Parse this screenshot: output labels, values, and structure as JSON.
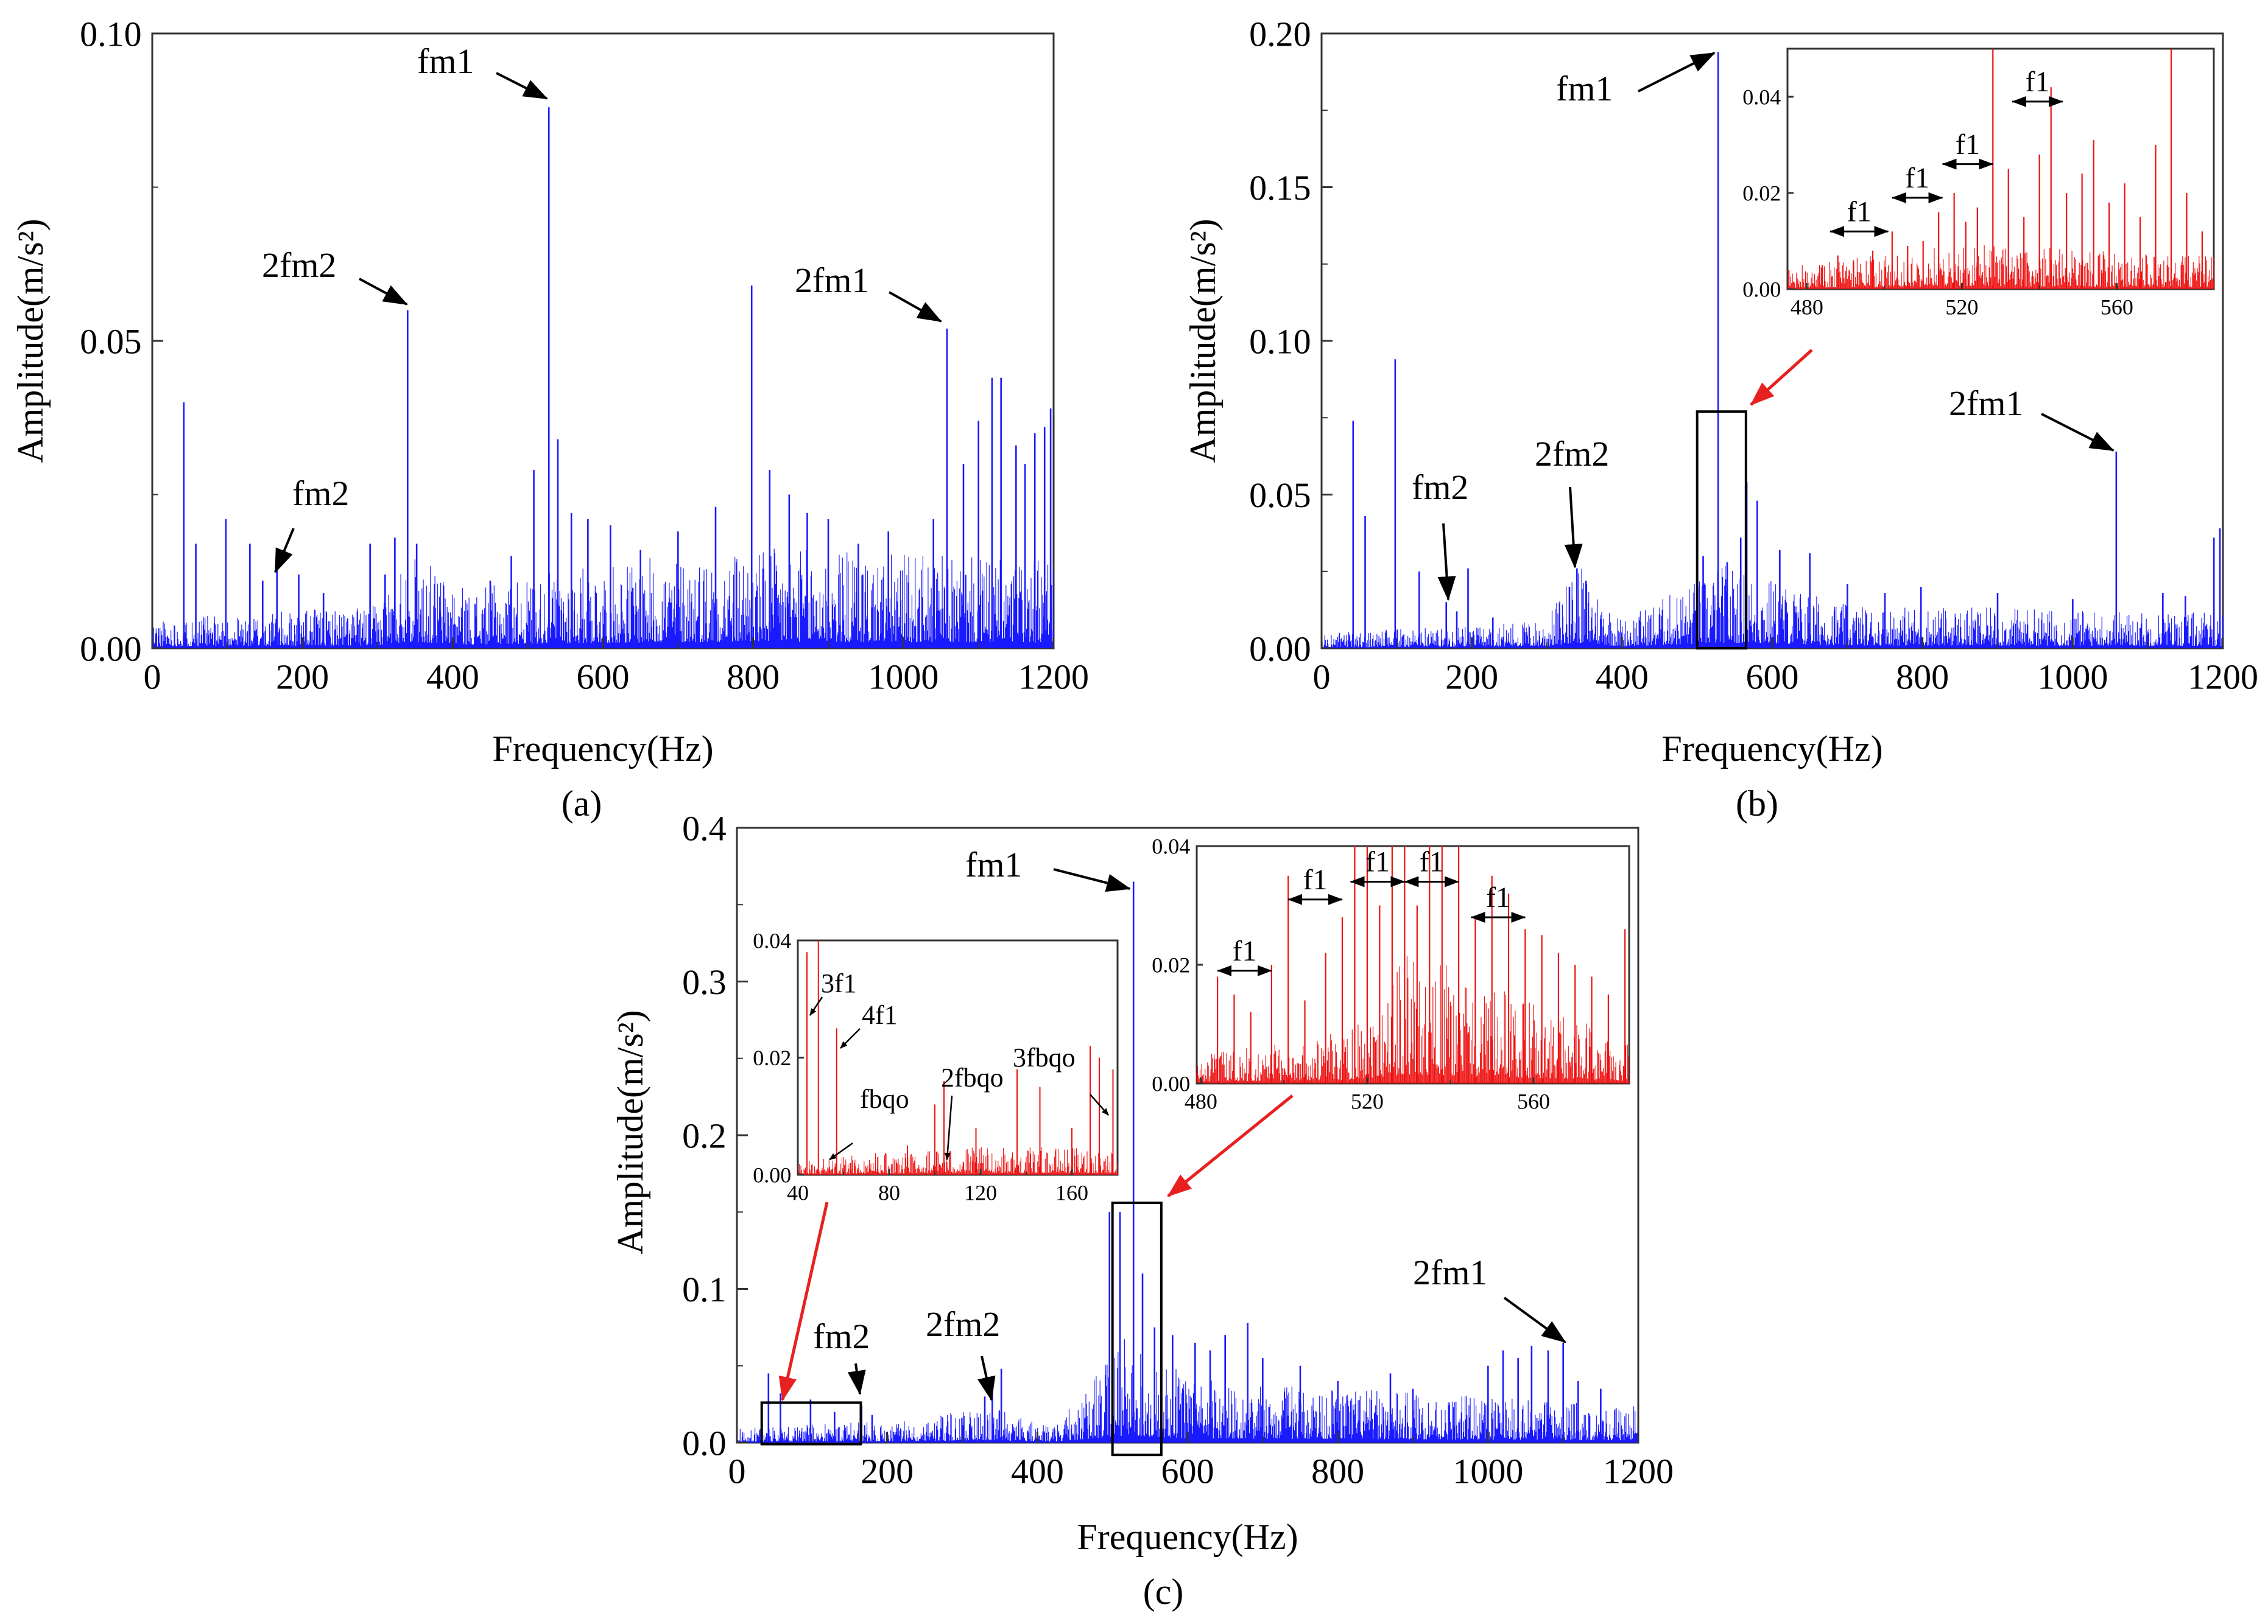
{
  "colors": {
    "main_series": "#1a1aff",
    "inset_series": "#ee1111",
    "arrow_red": "#e82020",
    "axis": "#000000"
  },
  "chart_data": [
    {
      "id": "a",
      "type": "line",
      "caption": "(a)",
      "xlabel": "Frequency(Hz)",
      "ylabel": "Amplitude(m/s²)",
      "xlim": [
        0,
        1200
      ],
      "ylim": [
        0,
        0.1
      ],
      "xticks": [
        0,
        200,
        400,
        600,
        800,
        1000,
        1200
      ],
      "yticks": [
        0.0,
        0.05,
        0.1
      ],
      "ytick_labels": [
        "0.00",
        "0.05",
        "0.10"
      ],
      "peaks": [
        [
          42,
          0.04
        ],
        [
          58,
          0.017
        ],
        [
          98,
          0.021
        ],
        [
          130,
          0.017
        ],
        [
          147,
          0.011
        ],
        [
          166,
          0.015
        ],
        [
          195,
          0.012
        ],
        [
          228,
          0.009
        ],
        [
          290,
          0.017
        ],
        [
          310,
          0.012
        ],
        [
          323,
          0.018
        ],
        [
          340,
          0.055
        ],
        [
          352,
          0.017
        ],
        [
          450,
          0.011
        ],
        [
          478,
          0.015
        ],
        [
          508,
          0.029
        ],
        [
          528,
          0.088
        ],
        [
          540,
          0.034
        ],
        [
          558,
          0.022
        ],
        [
          580,
          0.021
        ],
        [
          610,
          0.02
        ],
        [
          650,
          0.016
        ],
        [
          700,
          0.019
        ],
        [
          750,
          0.023
        ],
        [
          798,
          0.059
        ],
        [
          822,
          0.029
        ],
        [
          848,
          0.025
        ],
        [
          872,
          0.022
        ],
        [
          900,
          0.021
        ],
        [
          940,
          0.017
        ],
        [
          980,
          0.019
        ],
        [
          1040,
          0.021
        ],
        [
          1058,
          0.052
        ],
        [
          1080,
          0.03
        ],
        [
          1100,
          0.037
        ],
        [
          1118,
          0.044
        ],
        [
          1130,
          0.044
        ],
        [
          1150,
          0.033
        ],
        [
          1162,
          0.03
        ],
        [
          1175,
          0.035
        ],
        [
          1188,
          0.036
        ],
        [
          1196,
          0.039
        ]
      ],
      "noise_floor": [
        [
          0,
          0.002
        ],
        [
          300,
          0.003
        ],
        [
          340,
          0.007
        ],
        [
          420,
          0.004
        ],
        [
          600,
          0.006
        ],
        [
          850,
          0.007
        ],
        [
          1200,
          0.006
        ]
      ],
      "annotations": [
        {
          "text": "fm1",
          "x": 528,
          "y": 0.088
        },
        {
          "text": "2fm2",
          "x": 340,
          "y": 0.055
        },
        {
          "text": "2fm1",
          "x": 1058,
          "y": 0.052
        },
        {
          "text": "fm2",
          "x": 166,
          "y": 0.013
        }
      ]
    },
    {
      "id": "b",
      "type": "line",
      "caption": "(b)",
      "xlabel": "Frequency(Hz)",
      "ylabel": "Amplitude(m/s²)",
      "xlim": [
        0,
        1200
      ],
      "ylim": [
        0,
        0.2
      ],
      "xticks": [
        0,
        200,
        400,
        600,
        800,
        1000,
        1200
      ],
      "yticks": [
        0.0,
        0.05,
        0.1,
        0.15,
        0.2
      ],
      "ytick_labels": [
        "0.00",
        "0.05",
        "0.10",
        "0.15",
        "0.20"
      ],
      "peaks": [
        [
          42,
          0.074
        ],
        [
          58,
          0.043
        ],
        [
          98,
          0.094
        ],
        [
          130,
          0.025
        ],
        [
          166,
          0.015
        ],
        [
          180,
          0.012
        ],
        [
          195,
          0.026
        ],
        [
          228,
          0.01
        ],
        [
          330,
          0.02
        ],
        [
          340,
          0.026
        ],
        [
          352,
          0.022
        ],
        [
          450,
          0.011
        ],
        [
          508,
          0.03
        ],
        [
          528,
          0.194
        ],
        [
          540,
          0.028
        ],
        [
          558,
          0.036
        ],
        [
          566,
          0.054
        ],
        [
          580,
          0.048
        ],
        [
          610,
          0.032
        ],
        [
          650,
          0.031
        ],
        [
          700,
          0.021
        ],
        [
          750,
          0.018
        ],
        [
          798,
          0.02
        ],
        [
          900,
          0.018
        ],
        [
          1000,
          0.016
        ],
        [
          1058,
          0.064
        ],
        [
          1120,
          0.018
        ],
        [
          1150,
          0.017
        ],
        [
          1188,
          0.036
        ],
        [
          1196,
          0.039
        ]
      ],
      "noise_floor": [
        [
          0,
          0.002
        ],
        [
          300,
          0.004
        ],
        [
          340,
          0.012
        ],
        [
          400,
          0.004
        ],
        [
          540,
          0.012
        ],
        [
          700,
          0.006
        ],
        [
          1200,
          0.005
        ]
      ],
      "annotations": [
        {
          "text": "fm1",
          "x": 528,
          "y": 0.194
        },
        {
          "text": "fm2",
          "x": 166,
          "y": 0.015
        },
        {
          "text": "2fm2",
          "x": 340,
          "y": 0.026
        },
        {
          "text": "2fm1",
          "x": 1058,
          "y": 0.064
        }
      ],
      "highlight_box": {
        "x": [
          500,
          565
        ],
        "y": [
          0,
          0.077
        ]
      },
      "insets": [
        {
          "xlim": [
            475,
            585
          ],
          "ylim": [
            0,
            0.05
          ],
          "xticks": [
            480,
            520,
            560
          ],
          "yticks": [
            0.0,
            0.02,
            0.04
          ],
          "ytick_labels": [
            "0.00",
            "0.02",
            "0.04"
          ],
          "peaks": [
            [
              484,
              0.005
            ],
            [
              488,
              0.007
            ],
            [
              492,
              0.006
            ],
            [
              497,
              0.008
            ],
            [
              502,
              0.012
            ],
            [
              506,
              0.009
            ],
            [
              510,
              0.01
            ],
            [
              514,
              0.016
            ],
            [
              518,
              0.02
            ],
            [
              521,
              0.014
            ],
            [
              524,
              0.017
            ],
            [
              528,
              0.05
            ],
            [
              532,
              0.025
            ],
            [
              536,
              0.015
            ],
            [
              540,
              0.028
            ],
            [
              543,
              0.042
            ],
            [
              547,
              0.02
            ],
            [
              551,
              0.024
            ],
            [
              554,
              0.031
            ],
            [
              558,
              0.018
            ],
            [
              562,
              0.022
            ],
            [
              566,
              0.015
            ],
            [
              570,
              0.03
            ],
            [
              574,
              0.05
            ],
            [
              578,
              0.02
            ],
            [
              582,
              0.012
            ]
          ],
          "noise_floor": [
            [
              475,
              0.002
            ],
            [
              520,
              0.004
            ],
            [
              585,
              0.003
            ]
          ],
          "annotations": [
            {
              "text": "f1",
              "x": [
                486,
                501
              ],
              "y": 0.012
            },
            {
              "text": "f1",
              "x": [
                502,
                515
              ],
              "y": 0.019
            },
            {
              "text": "f1",
              "x": [
                515,
                528
              ],
              "y": 0.026
            },
            {
              "text": "f1",
              "x": [
                533,
                546
              ],
              "y": 0.039
            }
          ]
        }
      ]
    },
    {
      "id": "c",
      "type": "line",
      "caption": "(c)",
      "xlabel": "Frequency(Hz)",
      "ylabel": "Amplitude(m/s²)",
      "xlim": [
        0,
        1200
      ],
      "ylim": [
        0,
        0.4
      ],
      "xticks": [
        0,
        200,
        400,
        600,
        800,
        1000,
        1200
      ],
      "yticks": [
        0.0,
        0.1,
        0.2,
        0.3,
        0.4
      ],
      "ytick_labels": [
        "0.0",
        "0.1",
        "0.2",
        "0.3",
        "0.4"
      ],
      "peaks": [
        [
          42,
          0.045
        ],
        [
          58,
          0.032
        ],
        [
          98,
          0.028
        ],
        [
          130,
          0.02
        ],
        [
          166,
          0.024
        ],
        [
          180,
          0.018
        ],
        [
          330,
          0.03
        ],
        [
          340,
          0.042
        ],
        [
          352,
          0.048
        ],
        [
          496,
          0.15
        ],
        [
          510,
          0.15
        ],
        [
          528,
          0.365
        ],
        [
          540,
          0.11
        ],
        [
          556,
          0.075
        ],
        [
          580,
          0.07
        ],
        [
          610,
          0.065
        ],
        [
          630,
          0.06
        ],
        [
          650,
          0.07
        ],
        [
          680,
          0.078
        ],
        [
          700,
          0.055
        ],
        [
          750,
          0.05
        ],
        [
          800,
          0.04
        ],
        [
          870,
          0.045
        ],
        [
          900,
          0.035
        ],
        [
          1000,
          0.05
        ],
        [
          1020,
          0.06
        ],
        [
          1040,
          0.055
        ],
        [
          1058,
          0.063
        ],
        [
          1080,
          0.06
        ],
        [
          1100,
          0.065
        ],
        [
          1120,
          0.04
        ],
        [
          1150,
          0.035
        ]
      ],
      "noise_floor": [
        [
          0,
          0.004
        ],
        [
          200,
          0.006
        ],
        [
          340,
          0.01
        ],
        [
          420,
          0.004
        ],
        [
          520,
          0.03
        ],
        [
          600,
          0.018
        ],
        [
          1200,
          0.01
        ]
      ],
      "annotations": [
        {
          "text": "fm1",
          "x": 528,
          "y": 0.365
        },
        {
          "text": "fm2",
          "x": 166,
          "y": 0.024
        },
        {
          "text": "2fm2",
          "x": 340,
          "y": 0.03
        },
        {
          "text": "2fm1",
          "x": 1100,
          "y": 0.065
        }
      ],
      "highlight_boxes": [
        {
          "x": [
            33,
            165
          ],
          "y": [
            -0.001,
            0.026
          ]
        },
        {
          "x": [
            500,
            565
          ],
          "y": [
            -0.008,
            0.156
          ]
        }
      ],
      "insets": [
        {
          "xlim": [
            40,
            180
          ],
          "ylim": [
            0,
            0.04
          ],
          "xticks": [
            40,
            80,
            120,
            160
          ],
          "yticks": [
            0.0,
            0.02,
            0.04
          ],
          "ytick_labels": [
            "0.00",
            "0.02",
            "0.04"
          ],
          "peaks": [
            [
              44,
              0.038
            ],
            [
              49,
              0.04
            ],
            [
              57,
              0.025
            ],
            [
              63,
              0.002
            ],
            [
              75,
              0.003
            ],
            [
              88,
              0.005
            ],
            [
              100,
              0.012
            ],
            [
              104,
              0.016
            ],
            [
              118,
              0.008
            ],
            [
              136,
              0.018
            ],
            [
              146,
              0.015
            ],
            [
              160,
              0.008
            ],
            [
              168,
              0.022
            ],
            [
              172,
              0.02
            ],
            [
              178,
              0.018
            ]
          ],
          "noise_floor": [
            [
              40,
              0.001
            ],
            [
              100,
              0.002
            ],
            [
              180,
              0.002
            ]
          ],
          "annotations": [
            {
              "text": "3f1",
              "x": 44,
              "y": 0.038
            },
            {
              "text": "4f1",
              "x": 57,
              "y": 0.025
            },
            {
              "text": "fbqo",
              "x": 57,
              "y": 0.002
            },
            {
              "text": "2fbqo",
              "x": 106,
              "y": 0.002
            },
            {
              "text": "3fbqo",
              "x": 178,
              "y": 0.008
            }
          ]
        },
        {
          "xlim": [
            479,
            583
          ],
          "ylim": [
            0,
            0.04
          ],
          "xticks": [
            480,
            520,
            560
          ],
          "yticks": [
            0.0,
            0.02,
            0.04
          ],
          "ytick_labels": [
            "0.00",
            "0.02",
            "0.04"
          ],
          "peaks": [
            [
              484,
              0.018
            ],
            [
              488,
              0.015
            ],
            [
              492,
              0.012
            ],
            [
              497,
              0.02
            ],
            [
              501,
              0.035
            ],
            [
              505,
              0.014
            ],
            [
              510,
              0.022
            ],
            [
              514,
              0.028
            ],
            [
              517,
              0.055
            ],
            [
              520,
              0.055
            ],
            [
              523,
              0.03
            ],
            [
              526,
              0.042
            ],
            [
              529,
              0.055
            ],
            [
              532,
              0.03
            ],
            [
              535,
              0.04
            ],
            [
              538,
              0.045
            ],
            [
              542,
              0.05
            ],
            [
              546,
              0.028
            ],
            [
              550,
              0.035
            ],
            [
              554,
              0.032
            ],
            [
              558,
              0.026
            ],
            [
              562,
              0.025
            ],
            [
              566,
              0.022
            ],
            [
              570,
              0.02
            ],
            [
              574,
              0.018
            ],
            [
              578,
              0.015
            ],
            [
              582,
              0.026
            ]
          ],
          "noise_floor": [
            [
              479,
              0.002
            ],
            [
              515,
              0.004
            ],
            [
              529,
              0.01
            ],
            [
              583,
              0.003
            ]
          ],
          "annotations": [
            {
              "text": "f1",
              "x": [
                484,
                497
              ],
              "y": 0.019
            },
            {
              "text": "f1",
              "x": [
                501,
                514
              ],
              "y": 0.031
            },
            {
              "text": "f1",
              "x": [
                516,
                529
              ],
              "y": 0.034
            },
            {
              "text": "f1",
              "x": [
                529,
                542
              ],
              "y": 0.034
            },
            {
              "text": "f1",
              "x": [
                545,
                558
              ],
              "y": 0.028
            }
          ]
        }
      ]
    }
  ]
}
